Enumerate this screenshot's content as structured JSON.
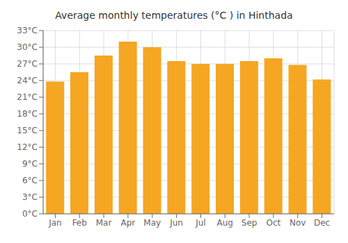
{
  "chart_data": {
    "type": "bar",
    "title": "Average monthly temperatures (°C ) in Hinthada",
    "categories": [
      "Jan",
      "Feb",
      "Mar",
      "Apr",
      "May",
      "Jun",
      "Jul",
      "Aug",
      "Sep",
      "Oct",
      "Nov",
      "Dec"
    ],
    "values": [
      23.8,
      25.5,
      28.5,
      31.0,
      30.0,
      27.5,
      27.0,
      27.0,
      27.5,
      28.0,
      26.8,
      24.2
    ],
    "color": "#F5A623",
    "ylim": [
      0,
      33
    ],
    "yticks": [
      {
        "value": 0,
        "label": "0°C"
      },
      {
        "value": 3,
        "label": "3°C"
      },
      {
        "value": 6,
        "label": "6°C"
      },
      {
        "value": 9,
        "label": "9°C"
      },
      {
        "value": 12,
        "label": "12°C"
      },
      {
        "value": 15,
        "label": "15°C"
      },
      {
        "value": 18,
        "label": "18°C"
      },
      {
        "value": 21,
        "label": "21°C"
      },
      {
        "value": 24,
        "label": "24°C"
      },
      {
        "value": 27,
        "label": "27°C"
      },
      {
        "value": 30,
        "label": "30°C"
      },
      {
        "value": 33,
        "label": "33°C"
      }
    ],
    "grid": true
  }
}
